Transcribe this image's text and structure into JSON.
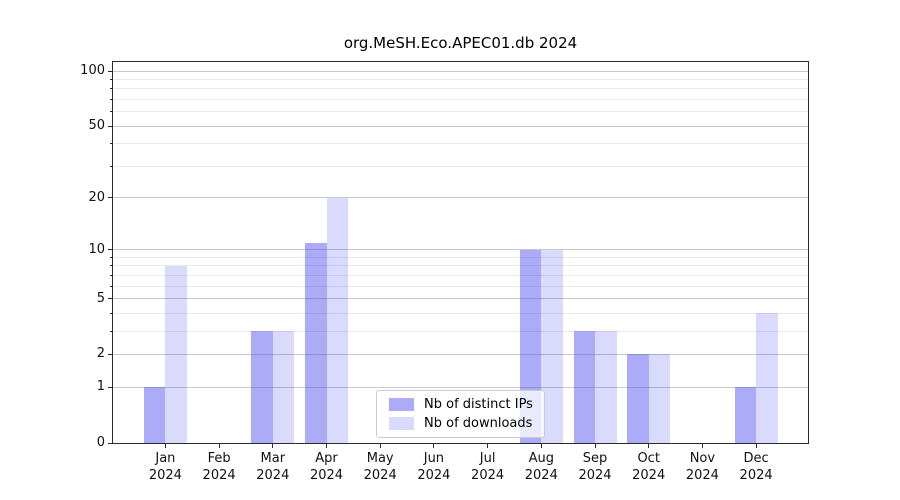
{
  "title": "org.MeSH.Eco.APEC01.db 2024",
  "legend": {
    "items": [
      {
        "label": "Nb of distinct IPs",
        "swatch": "rgba(68,68,238,0.45)"
      },
      {
        "label": "Nb of downloads",
        "swatch": "rgba(68,68,238,0.20)"
      }
    ]
  },
  "chart_data": {
    "type": "bar",
    "title": "org.MeSH.Eco.APEC01.db 2024",
    "categories": [
      "Jan 2024",
      "Feb 2024",
      "Mar 2024",
      "Apr 2024",
      "May 2024",
      "Jun 2024",
      "Jul 2024",
      "Aug 2024",
      "Sep 2024",
      "Oct 2024",
      "Nov 2024",
      "Dec 2024"
    ],
    "x_tick_labels": [
      "Jan\n2024",
      "Feb\n2024",
      "Mar\n2024",
      "Apr\n2024",
      "May\n2024",
      "Jun\n2024",
      "Jul\n2024",
      "Aug\n2024",
      "Sep\n2024",
      "Oct\n2024",
      "Nov\n2024",
      "Dec\n2024"
    ],
    "series": [
      {
        "id": "distinct-ips",
        "name": "Nb of distinct IPs",
        "color": "rgba(68,68,238,0.45)",
        "values": [
          1,
          0,
          3,
          11,
          0,
          0,
          0,
          10,
          3,
          2,
          0,
          1
        ]
      },
      {
        "id": "downloads",
        "name": "Nb of downloads",
        "color": "rgba(68,68,238,0.20)",
        "values": [
          8,
          0,
          3,
          20,
          0,
          0,
          0,
          10,
          3,
          2,
          0,
          4
        ]
      }
    ],
    "yscale": "log1p",
    "ylim": [
      0,
      112
    ],
    "y_major_ticks": [
      100,
      50,
      20,
      10,
      5,
      2,
      1,
      0
    ],
    "y_minor_ticks": [
      90,
      80,
      70,
      60,
      40,
      30,
      9,
      8,
      7,
      6,
      4,
      3
    ],
    "grid": true,
    "legend_position": "lower center"
  }
}
